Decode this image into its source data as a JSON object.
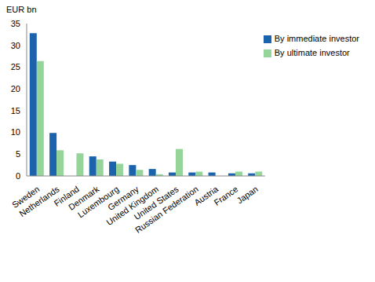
{
  "chart_data": {
    "type": "bar",
    "y_label": "EUR bn",
    "categories": [
      "Sweden",
      "Netherlands",
      "Finland",
      "Denmark",
      "Luxembourg",
      "Germany",
      "United Kingdom",
      "United States",
      "Russian Federation",
      "Austria",
      "France",
      "Japan"
    ],
    "series": [
      {
        "name": "By immediate investor",
        "color": "#1b63ad",
        "values": [
          32.8,
          9.9,
          null,
          4.5,
          3.3,
          2.5,
          1.6,
          0.8,
          0.8,
          0.8,
          0.6,
          0.6
        ]
      },
      {
        "name": "By ultimate investor",
        "color": "#95d59a",
        "values": [
          26.4,
          5.9,
          5.2,
          3.8,
          2.8,
          1.4,
          0.4,
          6.2,
          1.0,
          null,
          1.0,
          1.0
        ]
      }
    ],
    "ylim": [
      0,
      35
    ],
    "yticks": [
      0,
      5,
      10,
      15,
      20,
      25,
      30,
      35
    ],
    "grid": false,
    "legend": "upper right"
  }
}
